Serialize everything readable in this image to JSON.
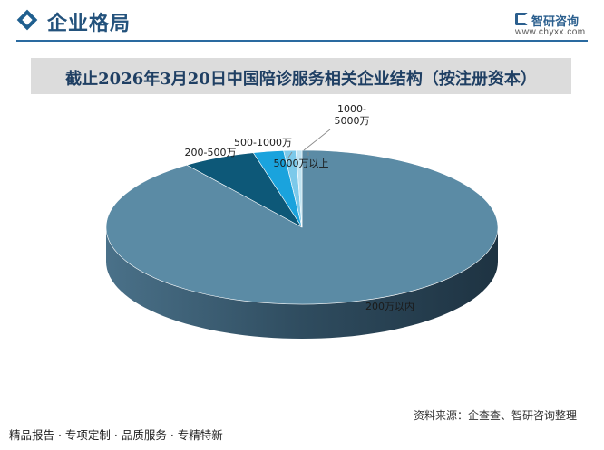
{
  "header": {
    "section_title": "企业格局",
    "logo_name": "智研咨询",
    "logo_url": "www.chyxx.com"
  },
  "chart_data": {
    "type": "pie",
    "title": "截止2026年3月20日中国陪诊服务相关企业结构（按注册资本）",
    "categories": [
      "200万以内",
      "200-500万",
      "500-1000万",
      "1000-5000万",
      "5000万以上"
    ],
    "values": [
      90.0,
      6.0,
      2.5,
      1.0,
      0.5
    ],
    "colors": [
      "#5b8ba5",
      "#0d5878",
      "#1aa3dd",
      "#7cc9ea",
      "#bfe3f2"
    ],
    "style": "3d"
  },
  "footer": {
    "tags": "精品报告 · 专项定制 · 品质服务 · 专精特新",
    "source": "资料来源：企查查、智研咨询整理"
  },
  "colors": {
    "accent": "#23527c",
    "title_bar": "#dcdcdc"
  }
}
